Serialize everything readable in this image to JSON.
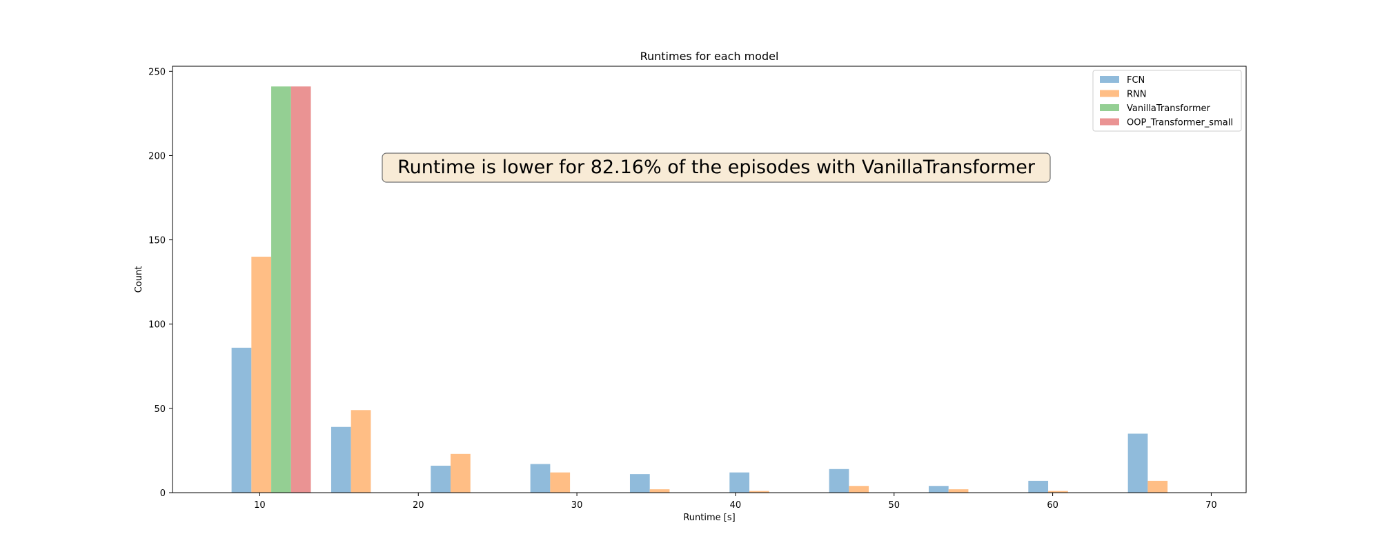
{
  "chart_data": {
    "type": "bar",
    "title": "Runtimes for each model",
    "xlabel": "Runtime [s]",
    "ylabel": "Count",
    "xlim": [
      4.5,
      72.2
    ],
    "ylim": [
      0,
      253
    ],
    "x_ticks": [
      10,
      20,
      30,
      40,
      50,
      60,
      70
    ],
    "y_ticks": [
      0,
      50,
      100,
      150,
      200,
      250
    ],
    "bar_width": 1.25,
    "grid": false,
    "legend_position": "top-right",
    "annotation": "Runtime is lower for 82.16% of the episodes with VanillaTransformer",
    "series": [
      {
        "name": "FCN",
        "color": "#90bbdb",
        "x": [
          8.85,
          15.13,
          21.41,
          27.69,
          33.97,
          40.25,
          46.53,
          52.81,
          59.09,
          65.37
        ],
        "values": [
          86,
          39,
          16,
          17,
          11,
          12,
          14,
          4,
          7,
          35
        ]
      },
      {
        "name": "RNN",
        "color": "#ffbe85",
        "x": [
          10.1,
          16.38,
          22.66,
          28.94,
          35.22,
          41.5,
          47.78,
          54.06,
          60.34,
          66.62
        ],
        "values": [
          140,
          49,
          23,
          12,
          2,
          1,
          4,
          2,
          1,
          7
        ]
      },
      {
        "name": "VanillaTransformer",
        "color": "#94cf93",
        "x": [
          11.35
        ],
        "values": [
          241
        ]
      },
      {
        "name": "OOP_Transformer_small",
        "color": "#ea9393",
        "x": [
          12.6
        ],
        "values": [
          241
        ]
      }
    ]
  }
}
